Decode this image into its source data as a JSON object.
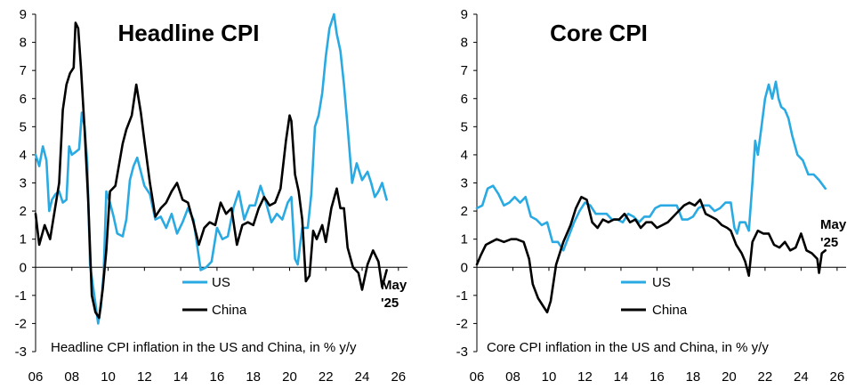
{
  "colors": {
    "us": "#2aaae2",
    "china": "#000000",
    "axis": "#000000",
    "background": "#ffffff"
  },
  "chart_data": [
    {
      "type": "line",
      "title": "Headline CPI",
      "caption": "Headline CPI inflation in the US and China, in % y/y",
      "xlabel": "",
      "ylabel": "",
      "xlim": [
        2006,
        2026.5
      ],
      "ylim": [
        -3,
        9
      ],
      "xticks": [
        2006,
        2008,
        2010,
        2012,
        2014,
        2016,
        2018,
        2020,
        2022,
        2024,
        2026
      ],
      "xtick_labels": [
        "06",
        "08",
        "10",
        "12",
        "14",
        "16",
        "18",
        "20",
        "22",
        "24",
        "26"
      ],
      "yticks": [
        -3,
        -2,
        -1,
        0,
        1,
        2,
        3,
        4,
        5,
        6,
        7,
        8,
        9
      ],
      "ytick_labels": [
        "-3",
        "-2",
        "-1",
        "0",
        "1",
        "2",
        "3",
        "4",
        "5",
        "6",
        "7",
        "8",
        "9"
      ],
      "legend": [
        "US",
        "China"
      ],
      "end_label": [
        "May",
        "'25"
      ],
      "series": [
        {
          "name": "US",
          "x": [
            2006.0,
            2006.2,
            2006.4,
            2006.6,
            2006.75,
            2006.9,
            2007.1,
            2007.3,
            2007.5,
            2007.7,
            2007.85,
            2008.0,
            2008.2,
            2008.4,
            2008.55,
            2008.7,
            2008.85,
            2009.0,
            2009.15,
            2009.3,
            2009.45,
            2009.6,
            2009.75,
            2009.9,
            2010.1,
            2010.3,
            2010.5,
            2010.8,
            2011.0,
            2011.2,
            2011.4,
            2011.6,
            2011.8,
            2012.0,
            2012.3,
            2012.6,
            2012.9,
            2013.2,
            2013.5,
            2013.8,
            2014.1,
            2014.4,
            2014.7,
            2014.9,
            2015.1,
            2015.4,
            2015.7,
            2016.0,
            2016.3,
            2016.6,
            2016.9,
            2017.2,
            2017.5,
            2017.8,
            2018.1,
            2018.4,
            2018.7,
            2019.0,
            2019.3,
            2019.6,
            2019.9,
            2020.1,
            2020.3,
            2020.45,
            2020.7,
            2021.0,
            2021.2,
            2021.4,
            2021.6,
            2021.8,
            2022.0,
            2022.2,
            2022.45,
            2022.6,
            2022.8,
            2023.0,
            2023.2,
            2023.45,
            2023.7,
            2024.0,
            2024.3,
            2024.5,
            2024.7,
            2024.9,
            2025.1,
            2025.35
          ],
          "values": [
            4.0,
            3.6,
            4.3,
            3.8,
            2.0,
            2.4,
            2.6,
            2.7,
            2.3,
            2.4,
            4.3,
            4.0,
            4.1,
            4.2,
            5.5,
            5.0,
            3.7,
            0.1,
            -0.6,
            -1.3,
            -2.0,
            -1.4,
            -0.2,
            2.7,
            2.3,
            1.8,
            1.2,
            1.1,
            1.7,
            3.1,
            3.6,
            3.9,
            3.4,
            2.9,
            2.6,
            1.7,
            1.8,
            1.4,
            1.9,
            1.2,
            1.6,
            2.1,
            1.7,
            0.8,
            -0.1,
            0.0,
            0.2,
            1.4,
            1.0,
            1.1,
            2.1,
            2.7,
            1.7,
            2.2,
            2.2,
            2.9,
            2.3,
            1.6,
            1.9,
            1.7,
            2.3,
            2.5,
            0.3,
            0.1,
            1.4,
            1.4,
            2.6,
            5.0,
            5.4,
            6.2,
            7.5,
            8.5,
            9.0,
            8.3,
            7.7,
            6.5,
            5.0,
            3.0,
            3.7,
            3.1,
            3.4,
            3.0,
            2.5,
            2.7,
            3.0,
            2.4
          ]
        },
        {
          "name": "China",
          "x": [
            2006.0,
            2006.2,
            2006.5,
            2006.8,
            2007.1,
            2007.3,
            2007.5,
            2007.7,
            2007.9,
            2008.1,
            2008.2,
            2008.35,
            2008.5,
            2008.7,
            2008.9,
            2009.1,
            2009.3,
            2009.5,
            2009.7,
            2009.9,
            2010.1,
            2010.4,
            2010.8,
            2011.0,
            2011.3,
            2011.55,
            2011.8,
            2012.0,
            2012.3,
            2012.6,
            2012.9,
            2013.2,
            2013.5,
            2013.8,
            2014.1,
            2014.4,
            2014.7,
            2015.0,
            2015.3,
            2015.6,
            2015.9,
            2016.2,
            2016.5,
            2016.8,
            2017.1,
            2017.4,
            2017.7,
            2018.0,
            2018.3,
            2018.6,
            2018.9,
            2019.2,
            2019.5,
            2019.8,
            2020.0,
            2020.1,
            2020.3,
            2020.5,
            2020.7,
            2020.9,
            2021.1,
            2021.3,
            2021.5,
            2021.8,
            2022.0,
            2022.3,
            2022.6,
            2022.8,
            2023.0,
            2023.2,
            2023.5,
            2023.8,
            2024.0,
            2024.3,
            2024.6,
            2024.9,
            2025.1,
            2025.35
          ],
          "values": [
            1.9,
            0.8,
            1.5,
            1.0,
            2.2,
            3.0,
            5.6,
            6.5,
            6.9,
            7.1,
            8.7,
            8.5,
            7.1,
            4.9,
            2.4,
            -1.0,
            -1.6,
            -1.8,
            -0.8,
            0.6,
            2.7,
            2.9,
            4.4,
            4.9,
            5.4,
            6.5,
            5.5,
            4.5,
            3.0,
            1.8,
            2.1,
            2.3,
            2.7,
            3.0,
            2.4,
            2.3,
            1.6,
            0.8,
            1.4,
            1.6,
            1.5,
            2.3,
            1.9,
            2.1,
            0.8,
            1.5,
            1.6,
            1.5,
            2.1,
            2.5,
            2.2,
            2.3,
            2.8,
            4.5,
            5.4,
            5.2,
            3.3,
            2.7,
            1.7,
            -0.5,
            -0.3,
            1.3,
            1.0,
            1.5,
            0.9,
            2.1,
            2.8,
            2.1,
            2.1,
            0.7,
            0.0,
            -0.2,
            -0.8,
            0.1,
            0.6,
            0.2,
            -0.7,
            -0.1
          ]
        }
      ]
    },
    {
      "type": "line",
      "title": "Core CPI",
      "caption": "Core CPI inflation in the US and China, in % y/y",
      "xlabel": "",
      "ylabel": "",
      "xlim": [
        2006,
        2026.5
      ],
      "ylim": [
        -3,
        9
      ],
      "xticks": [
        2006,
        2008,
        2010,
        2012,
        2014,
        2016,
        2018,
        2020,
        2022,
        2024,
        2026
      ],
      "xtick_labels": [
        "06",
        "08",
        "10",
        "12",
        "14",
        "16",
        "18",
        "20",
        "22",
        "24",
        "26"
      ],
      "yticks": [
        -3,
        -2,
        -1,
        0,
        1,
        2,
        3,
        4,
        5,
        6,
        7,
        8,
        9
      ],
      "ytick_labels": [
        "-3",
        "-2",
        "-1",
        "0",
        "1",
        "2",
        "3",
        "4",
        "5",
        "6",
        "7",
        "8",
        "9"
      ],
      "legend": [
        "US",
        "China"
      ],
      "end_label": [
        "May",
        "'25"
      ],
      "series": [
        {
          "name": "US",
          "x": [
            2006.0,
            2006.3,
            2006.6,
            2006.9,
            2007.2,
            2007.5,
            2007.8,
            2008.1,
            2008.4,
            2008.7,
            2009.0,
            2009.3,
            2009.6,
            2009.9,
            2010.2,
            2010.5,
            2010.8,
            2011.1,
            2011.4,
            2011.7,
            2012.0,
            2012.3,
            2012.6,
            2012.9,
            2013.2,
            2013.5,
            2013.8,
            2014.1,
            2014.4,
            2014.7,
            2015.0,
            2015.3,
            2015.6,
            2015.9,
            2016.2,
            2016.5,
            2016.8,
            2017.1,
            2017.4,
            2017.7,
            2018.0,
            2018.3,
            2018.6,
            2018.9,
            2019.2,
            2019.5,
            2019.8,
            2020.1,
            2020.3,
            2020.45,
            2020.6,
            2020.9,
            2021.1,
            2021.3,
            2021.45,
            2021.6,
            2021.8,
            2022.0,
            2022.2,
            2022.4,
            2022.6,
            2022.75,
            2022.9,
            2023.1,
            2023.3,
            2023.5,
            2023.8,
            2024.1,
            2024.4,
            2024.7,
            2025.0,
            2025.35
          ],
          "values": [
            2.1,
            2.2,
            2.8,
            2.9,
            2.6,
            2.2,
            2.3,
            2.5,
            2.3,
            2.5,
            1.8,
            1.7,
            1.5,
            1.6,
            0.9,
            0.9,
            0.6,
            1.1,
            1.6,
            2.0,
            2.3,
            2.2,
            1.9,
            1.9,
            1.9,
            1.7,
            1.7,
            1.6,
            1.9,
            1.8,
            1.6,
            1.8,
            1.8,
            2.1,
            2.2,
            2.2,
            2.2,
            2.2,
            1.7,
            1.7,
            1.8,
            2.1,
            2.2,
            2.2,
            2.0,
            2.1,
            2.3,
            2.3,
            1.4,
            1.2,
            1.6,
            1.6,
            1.3,
            3.0,
            4.5,
            4.0,
            5.0,
            6.0,
            6.5,
            6.0,
            6.6,
            6.0,
            5.7,
            5.6,
            5.3,
            4.7,
            4.0,
            3.8,
            3.3,
            3.3,
            3.1,
            2.8
          ]
        },
        {
          "name": "China",
          "x": [
            2006.0,
            2006.2,
            2006.5,
            2006.8,
            2007.1,
            2007.5,
            2007.9,
            2008.2,
            2008.6,
            2008.9,
            2009.1,
            2009.4,
            2009.7,
            2009.9,
            2010.1,
            2010.4,
            2010.8,
            2011.2,
            2011.5,
            2011.8,
            2012.1,
            2012.4,
            2012.7,
            2013.0,
            2013.3,
            2013.6,
            2013.9,
            2014.2,
            2014.5,
            2014.8,
            2015.1,
            2015.4,
            2015.7,
            2016.0,
            2016.3,
            2016.6,
            2016.9,
            2017.2,
            2017.5,
            2017.8,
            2018.1,
            2018.4,
            2018.7,
            2019.0,
            2019.3,
            2019.6,
            2019.9,
            2020.1,
            2020.4,
            2020.7,
            2020.9,
            2021.1,
            2021.3,
            2021.6,
            2021.9,
            2022.2,
            2022.5,
            2022.8,
            2023.1,
            2023.4,
            2023.7,
            2024.0,
            2024.3,
            2024.6,
            2024.9,
            2025.0,
            2025.15,
            2025.35
          ],
          "values": [
            0.1,
            0.4,
            0.8,
            0.9,
            1.0,
            0.9,
            1.0,
            1.0,
            0.9,
            0.3,
            -0.6,
            -1.1,
            -1.4,
            -1.6,
            -1.2,
            0.1,
            0.9,
            1.5,
            2.1,
            2.5,
            2.4,
            1.6,
            1.4,
            1.7,
            1.6,
            1.7,
            1.7,
            1.9,
            1.6,
            1.7,
            1.4,
            1.6,
            1.6,
            1.4,
            1.5,
            1.6,
            1.8,
            2.0,
            2.2,
            2.3,
            2.2,
            2.4,
            1.9,
            1.8,
            1.7,
            1.5,
            1.4,
            1.3,
            0.8,
            0.5,
            0.2,
            -0.3,
            0.9,
            1.3,
            1.2,
            1.2,
            0.8,
            0.7,
            0.9,
            0.6,
            0.7,
            1.2,
            0.6,
            0.5,
            0.3,
            -0.2,
            0.5,
            0.6
          ]
        }
      ]
    }
  ]
}
